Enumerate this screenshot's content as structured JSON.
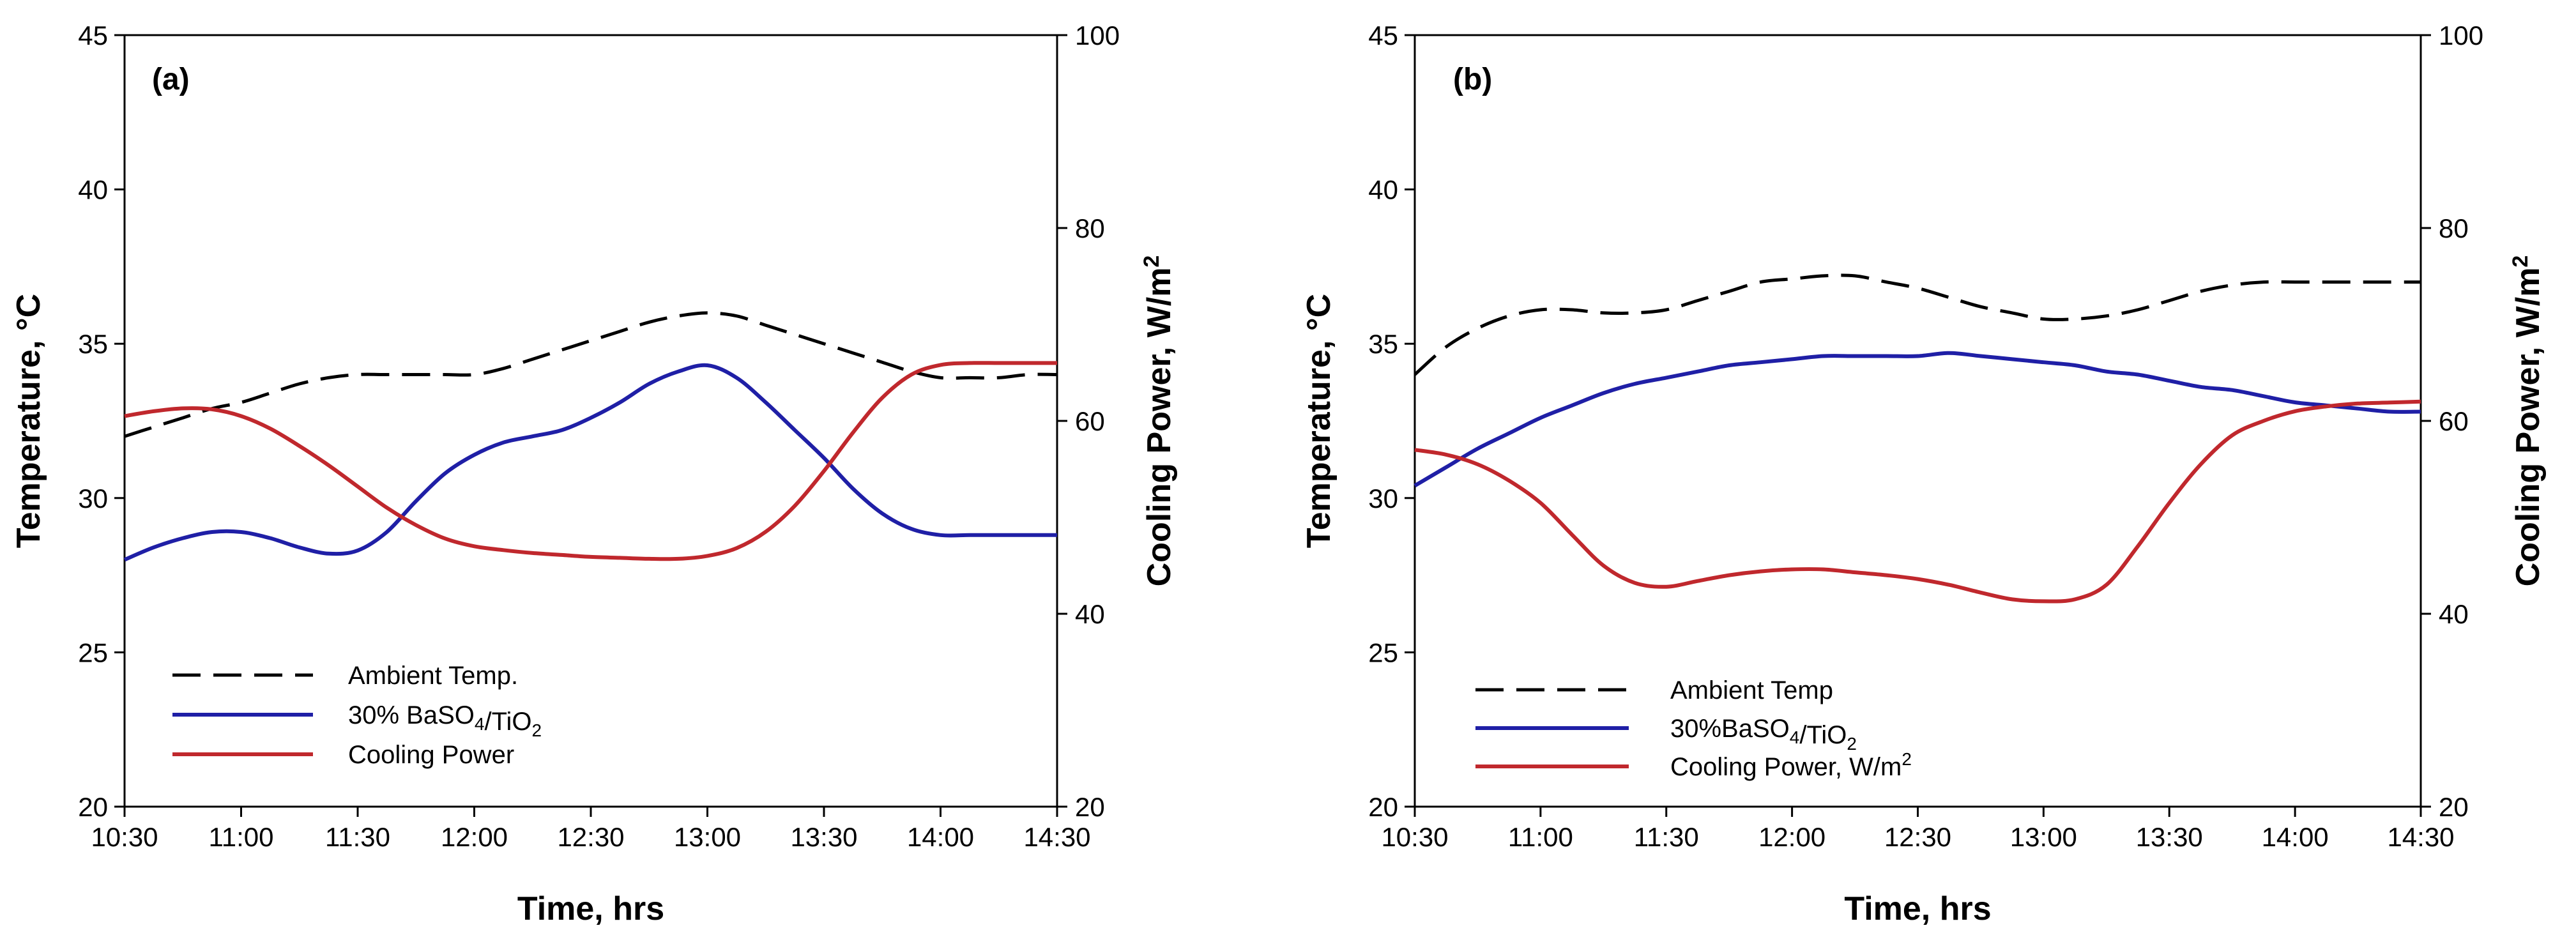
{
  "chart_data": [
    {
      "type": "line",
      "panel_label": "(a)",
      "xlabel": "Time, hrs",
      "ylabel": "Temperature, °C",
      "y2label": {
        "main": "Cooling Power, W/m",
        "sup": "2"
      },
      "categories": [
        "10:30",
        "11:00",
        "11:30",
        "12:00",
        "12:30",
        "13:00",
        "13:30",
        "14:00",
        "14:30"
      ],
      "ylim": [
        20,
        45
      ],
      "yticks": [
        20,
        25,
        30,
        35,
        40,
        45
      ],
      "y2lim": [
        20,
        100
      ],
      "y2ticks": [
        20,
        40,
        60,
        80,
        100
      ],
      "legend": [
        {
          "parts": [
            {
              "t": "Ambient Temp."
            }
          ]
        },
        {
          "parts": [
            {
              "t": "30% BaSO"
            },
            {
              "t": "4",
              "sub": true
            },
            {
              "t": "/TiO"
            },
            {
              "t": "2",
              "sub": true
            }
          ]
        },
        {
          "parts": [
            {
              "t": "Cooling Power"
            }
          ]
        }
      ],
      "series": [
        {
          "name": "Ambient Temp.",
          "axis": "left",
          "color": "#000000",
          "dash": true,
          "x": [
            0,
            0.25,
            0.5,
            0.75,
            1,
            1.25,
            1.5,
            1.75,
            2,
            2.25,
            2.5,
            2.75,
            3,
            3.25,
            3.5,
            3.75,
            4,
            4.25,
            4.5,
            4.75,
            5,
            5.25,
            5.5,
            5.75,
            6,
            6.25,
            6.5,
            6.75,
            7,
            7.25,
            7.5,
            7.75,
            8
          ],
          "y": [
            32.0,
            32.3,
            32.6,
            32.9,
            33.1,
            33.4,
            33.7,
            33.9,
            34.0,
            34.0,
            34.0,
            34.0,
            34.0,
            34.2,
            34.5,
            34.8,
            35.1,
            35.4,
            35.7,
            35.9,
            36.0,
            35.9,
            35.6,
            35.3,
            35.0,
            34.7,
            34.4,
            34.1,
            33.9,
            33.9,
            33.9,
            34.0,
            34.0
          ]
        },
        {
          "name": "30% BaSO4/TiO2",
          "axis": "left",
          "color": "#1f1fa6",
          "dash": false,
          "x": [
            0,
            0.25,
            0.5,
            0.75,
            1,
            1.25,
            1.5,
            1.75,
            2,
            2.25,
            2.5,
            2.75,
            3,
            3.25,
            3.5,
            3.75,
            4,
            4.25,
            4.5,
            4.75,
            5,
            5.25,
            5.5,
            5.75,
            6,
            6.25,
            6.5,
            6.75,
            7,
            7.25,
            7.5,
            7.75,
            8
          ],
          "y": [
            28.0,
            28.4,
            28.7,
            28.9,
            28.9,
            28.7,
            28.4,
            28.2,
            28.3,
            28.9,
            29.9,
            30.8,
            31.4,
            31.8,
            32.0,
            32.2,
            32.6,
            33.1,
            33.7,
            34.1,
            34.3,
            33.9,
            33.1,
            32.2,
            31.3,
            30.3,
            29.5,
            29.0,
            28.8,
            28.8,
            28.8,
            28.8,
            28.8
          ]
        },
        {
          "name": "Cooling Power",
          "axis": "right",
          "color": "#c0282d",
          "dash": false,
          "x": [
            0,
            0.25,
            0.5,
            0.75,
            1,
            1.25,
            1.5,
            1.75,
            2,
            2.25,
            2.5,
            2.75,
            3,
            3.25,
            3.5,
            3.75,
            4,
            4.25,
            4.5,
            4.75,
            5,
            5.25,
            5.5,
            5.75,
            6,
            6.25,
            6.5,
            6.75,
            7,
            7.25,
            7.5,
            7.75,
            8
          ],
          "y": [
            60.5,
            61.0,
            61.3,
            61.2,
            60.5,
            59.2,
            57.4,
            55.4,
            53.2,
            51.0,
            49.2,
            47.8,
            47.0,
            46.6,
            46.3,
            46.1,
            45.9,
            45.8,
            45.7,
            45.7,
            46.0,
            46.8,
            48.5,
            51.2,
            54.8,
            58.8,
            62.4,
            64.8,
            65.8,
            66.0,
            66.0,
            66.0,
            66.0
          ]
        }
      ]
    },
    {
      "type": "line",
      "panel_label": "(b)",
      "xlabel": "Time, hrs",
      "ylabel": "Temperature, °C",
      "y2label": {
        "main": "Cooling Power, W/m",
        "sup": "2"
      },
      "categories": [
        "10:30",
        "11:00",
        "11:30",
        "12:00",
        "12:30",
        "13:00",
        "13:30",
        "14:00",
        "14:30"
      ],
      "ylim": [
        20,
        45
      ],
      "yticks": [
        20,
        25,
        30,
        35,
        40,
        45
      ],
      "y2lim": [
        20,
        100
      ],
      "y2ticks": [
        20,
        40,
        60,
        80,
        100
      ],
      "legend": [
        {
          "parts": [
            {
              "t": "Ambient Temp"
            }
          ]
        },
        {
          "parts": [
            {
              "t": "30%BaSO"
            },
            {
              "t": "4",
              "sub": true
            },
            {
              "t": "/TiO"
            },
            {
              "t": "2",
              "sub": true
            }
          ]
        },
        {
          "parts": [
            {
              "t": "Cooling Power, W/m"
            },
            {
              "t": "2",
              "sup": true
            }
          ]
        }
      ],
      "series": [
        {
          "name": "Ambient Temp",
          "axis": "left",
          "color": "#000000",
          "dash": true,
          "x": [
            0,
            0.25,
            0.5,
            0.75,
            1,
            1.25,
            1.5,
            1.75,
            2,
            2.25,
            2.5,
            2.75,
            3,
            3.25,
            3.5,
            3.75,
            4,
            4.25,
            4.5,
            4.75,
            5,
            5.25,
            5.5,
            5.75,
            6,
            6.25,
            6.5,
            6.75,
            7,
            7.25,
            7.5,
            7.75,
            8
          ],
          "y": [
            34.0,
            34.9,
            35.5,
            35.9,
            36.1,
            36.1,
            36.0,
            36.0,
            36.1,
            36.4,
            36.7,
            37.0,
            37.1,
            37.2,
            37.2,
            37.0,
            36.8,
            36.5,
            36.2,
            36.0,
            35.8,
            35.8,
            35.9,
            36.1,
            36.4,
            36.7,
            36.9,
            37.0,
            37.0,
            37.0,
            37.0,
            37.0,
            37.0
          ]
        },
        {
          "name": "30%BaSO4/TiO2",
          "axis": "left",
          "color": "#1f1fa6",
          "dash": false,
          "x": [
            0,
            0.25,
            0.5,
            0.75,
            1,
            1.25,
            1.5,
            1.75,
            2,
            2.25,
            2.5,
            2.75,
            3,
            3.25,
            3.5,
            3.75,
            4,
            4.25,
            4.5,
            4.75,
            5,
            5.25,
            5.5,
            5.75,
            6,
            6.25,
            6.5,
            6.75,
            7,
            7.25,
            7.5,
            7.75,
            8
          ],
          "y": [
            30.4,
            31.0,
            31.6,
            32.1,
            32.6,
            33.0,
            33.4,
            33.7,
            33.9,
            34.1,
            34.3,
            34.4,
            34.5,
            34.6,
            34.6,
            34.6,
            34.6,
            34.7,
            34.6,
            34.5,
            34.4,
            34.3,
            34.1,
            34.0,
            33.8,
            33.6,
            33.5,
            33.3,
            33.1,
            33.0,
            32.9,
            32.8,
            32.8
          ]
        },
        {
          "name": "Cooling Power, W/m2",
          "axis": "right",
          "color": "#c0282d",
          "dash": false,
          "x": [
            0,
            0.25,
            0.5,
            0.75,
            1,
            1.25,
            1.5,
            1.75,
            2,
            2.25,
            2.5,
            2.75,
            3,
            3.25,
            3.5,
            3.75,
            4,
            4.25,
            4.5,
            4.75,
            5,
            5.25,
            5.5,
            5.75,
            6,
            6.25,
            6.5,
            6.75,
            7,
            7.25,
            7.5,
            7.75,
            8
          ],
          "y": [
            57.0,
            56.5,
            55.5,
            53.8,
            51.5,
            48.2,
            45.0,
            43.2,
            42.8,
            43.4,
            44.0,
            44.4,
            44.6,
            44.6,
            44.3,
            44.0,
            43.6,
            43.0,
            42.2,
            41.5,
            41.3,
            41.5,
            43.0,
            47.0,
            51.5,
            55.5,
            58.5,
            60.0,
            61.0,
            61.5,
            61.8,
            61.9,
            62.0
          ]
        }
      ]
    }
  ]
}
